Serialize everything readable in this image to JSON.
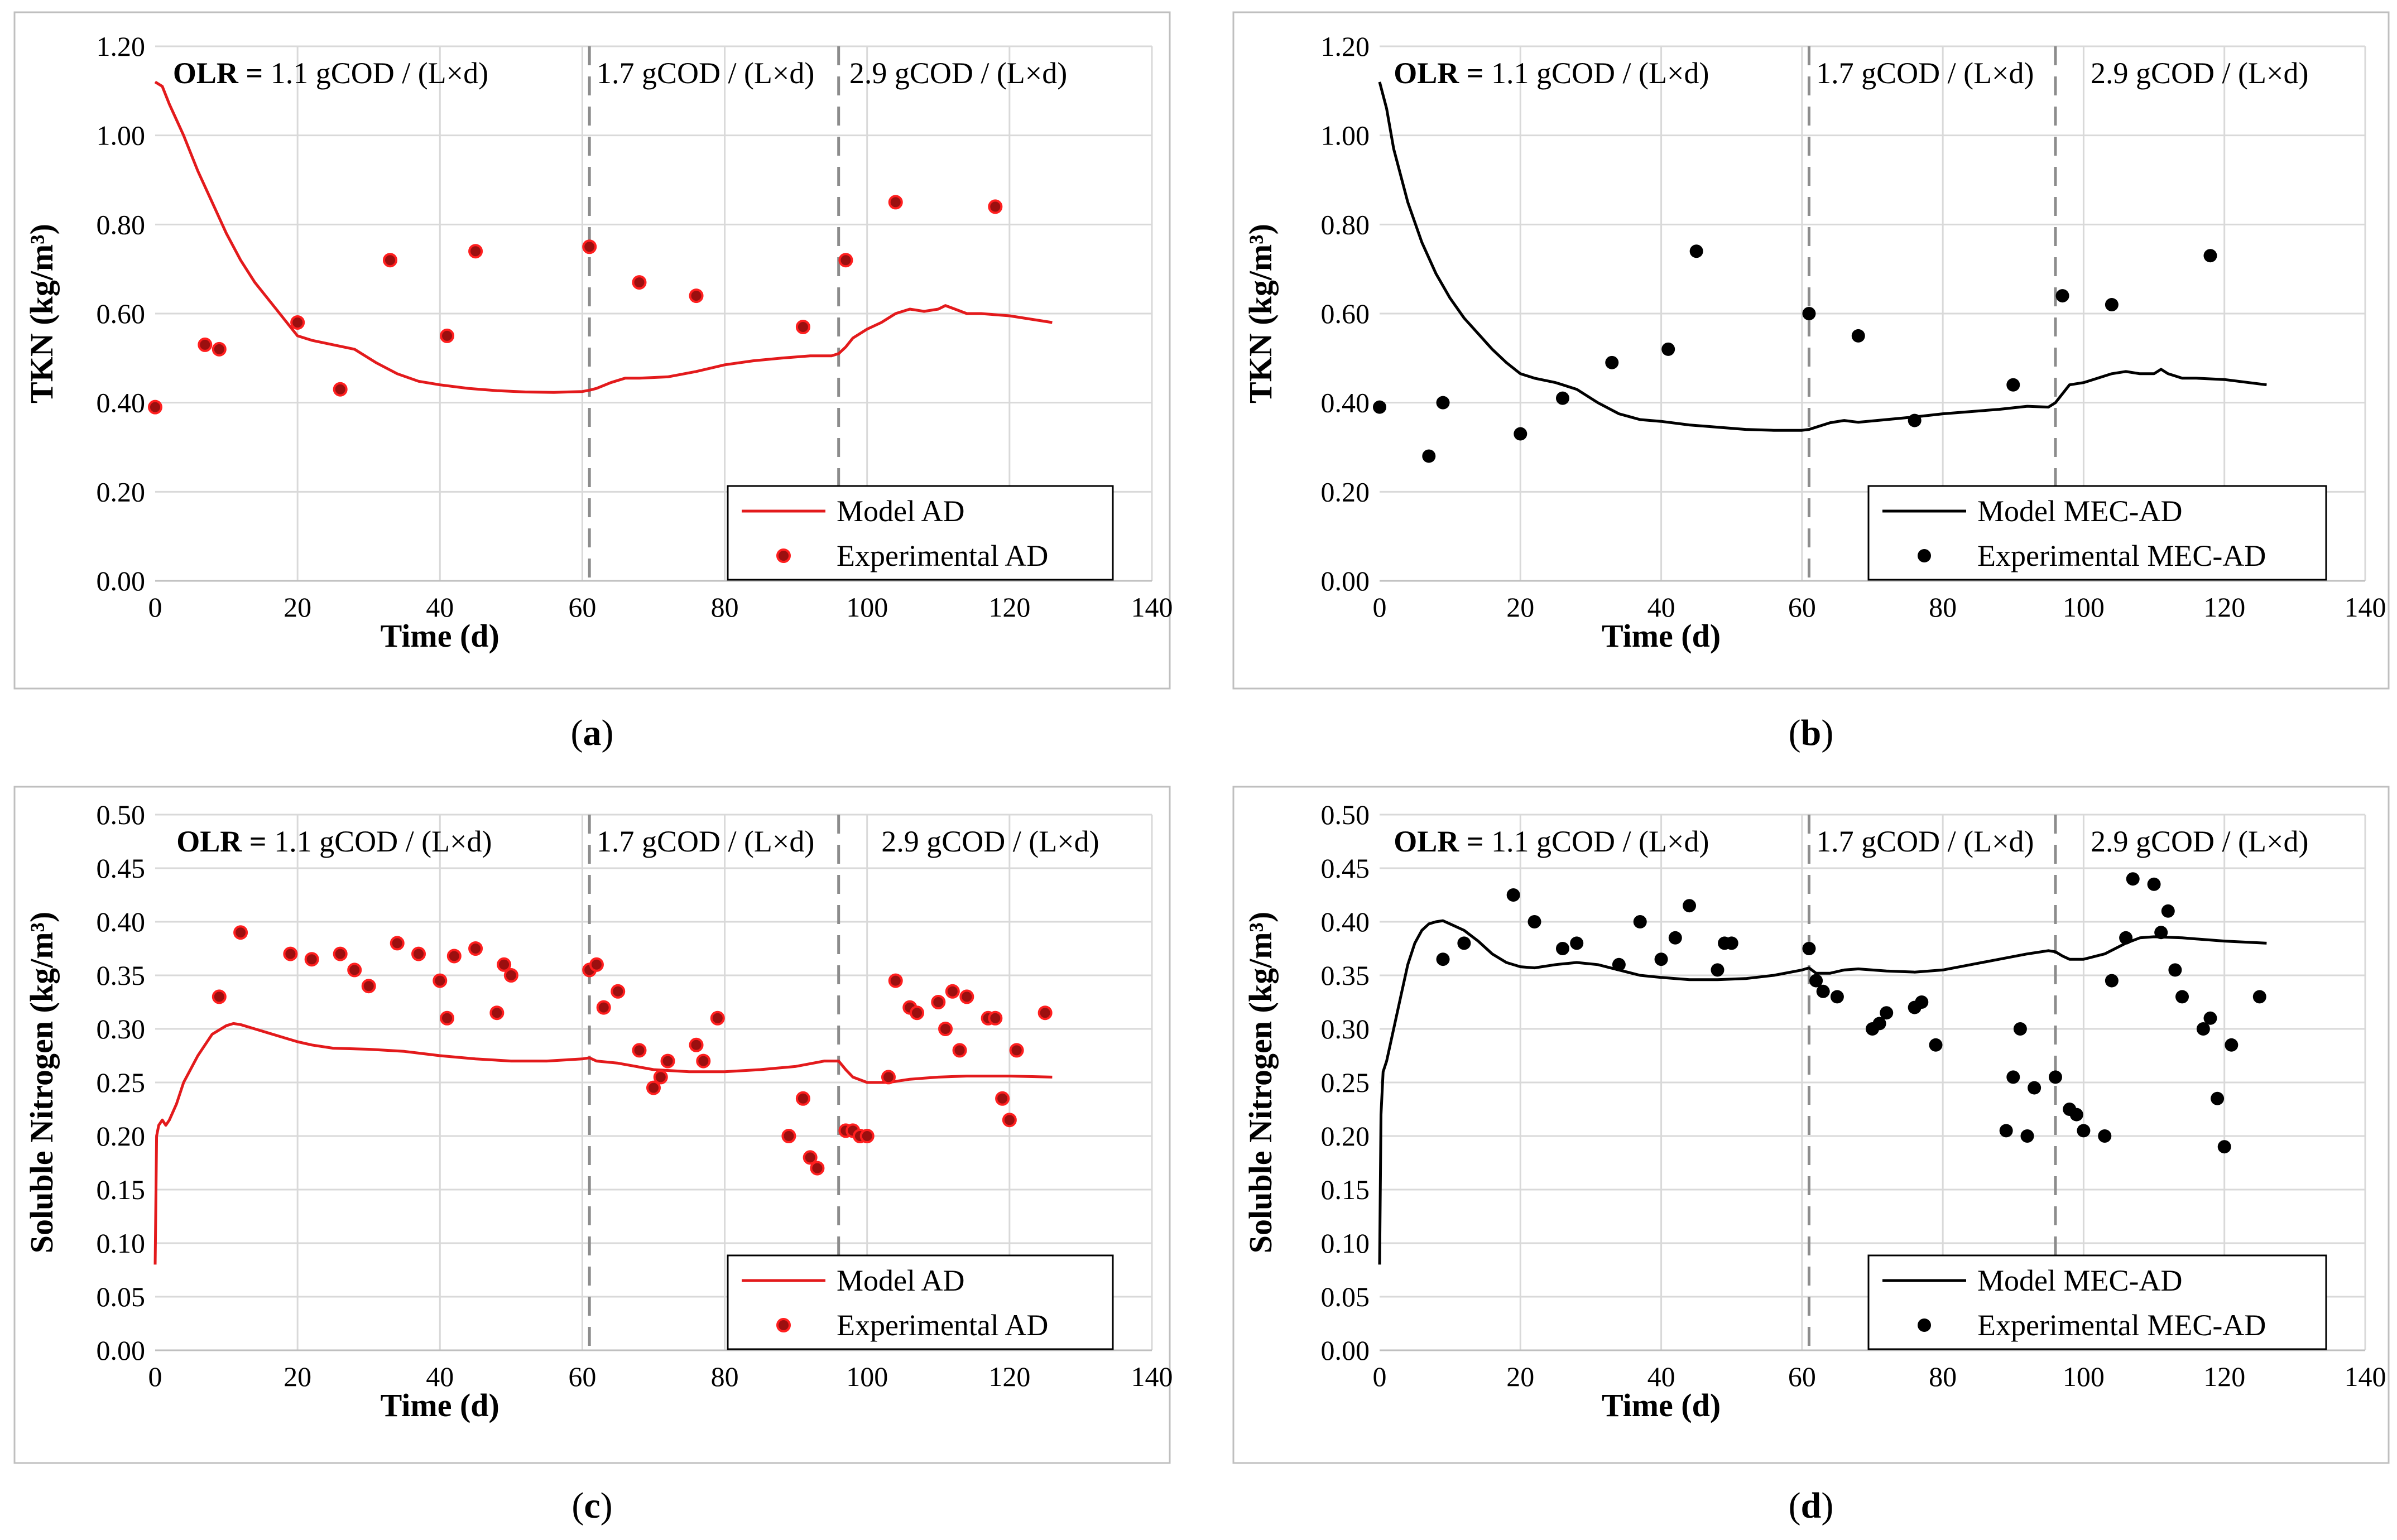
{
  "colors": {
    "red": "#e31a1c",
    "dot_red": "#9b0f0f",
    "black": "#000000",
    "grid": "#d9d9d9",
    "frame": "#bfbfbf",
    "divider": "#8c8c8c"
  },
  "chart_data": [
    {
      "id": "a",
      "type": "line+scatter",
      "caption": {
        "open": "(",
        "letter": "a",
        "close": ")"
      },
      "xlabel": "Time (d)",
      "ylabel": "TKN (kg/m³)",
      "xlim": [
        0,
        140
      ],
      "ylim": [
        0,
        1.2
      ],
      "x_ticks": [
        0,
        20,
        40,
        60,
        80,
        100,
        120,
        140
      ],
      "y_ticks": [
        0,
        0.2,
        0.4,
        0.6,
        0.8,
        1.0,
        1.2
      ],
      "y_decimals": 2,
      "color": "red",
      "dividers": [
        61,
        96
      ],
      "olr": [
        {
          "x": 2.5,
          "prefix": "OLR = ",
          "text": "1.1 gCOD / (L×d)"
        },
        {
          "x": 62,
          "prefix": "",
          "text": "1.7 gCOD / (L×d)"
        },
        {
          "x": 97.5,
          "prefix": "",
          "text": "2.9 gCOD / (L×d)"
        }
      ],
      "legend": {
        "line": "Model AD",
        "points": "Experimental AD"
      },
      "model": {
        "x": [
          0,
          1,
          2,
          4,
          6,
          8,
          10,
          12,
          14,
          16,
          18,
          20,
          22,
          25,
          28,
          31,
          34,
          37,
          40,
          44,
          48,
          52,
          56,
          60,
          61,
          62,
          64,
          66,
          68,
          72,
          76,
          80,
          84,
          88,
          92,
          95,
          96,
          97,
          98,
          100,
          102,
          104,
          106,
          108,
          110,
          111,
          112,
          114,
          116,
          120,
          126
        ],
        "y": [
          1.12,
          1.11,
          1.07,
          1.0,
          0.92,
          0.85,
          0.78,
          0.72,
          0.67,
          0.63,
          0.59,
          0.55,
          0.54,
          0.53,
          0.52,
          0.49,
          0.465,
          0.448,
          0.44,
          0.432,
          0.427,
          0.424,
          0.423,
          0.425,
          0.428,
          0.432,
          0.445,
          0.455,
          0.455,
          0.458,
          0.47,
          0.485,
          0.494,
          0.5,
          0.505,
          0.505,
          0.51,
          0.525,
          0.545,
          0.565,
          0.58,
          0.6,
          0.61,
          0.605,
          0.61,
          0.618,
          0.612,
          0.6,
          0.6,
          0.595,
          0.58
        ]
      },
      "points": {
        "x": [
          0,
          7,
          9,
          20,
          26,
          33,
          41,
          45,
          61,
          68,
          76,
          91,
          97,
          104,
          118
        ],
        "y": [
          0.39,
          0.53,
          0.52,
          0.58,
          0.43,
          0.72,
          0.55,
          0.74,
          0.75,
          0.67,
          0.64,
          0.57,
          0.72,
          0.85,
          0.84
        ]
      }
    },
    {
      "id": "b",
      "type": "line+scatter",
      "caption": {
        "open": "(",
        "letter": "b",
        "close": ")"
      },
      "xlabel": "Time (d)",
      "ylabel": "TKN (kg/m³)",
      "xlim": [
        0,
        140
      ],
      "ylim": [
        0,
        1.2
      ],
      "x_ticks": [
        0,
        20,
        40,
        60,
        80,
        100,
        120,
        140
      ],
      "y_ticks": [
        0,
        0.2,
        0.4,
        0.6,
        0.8,
        1.0,
        1.2
      ],
      "y_decimals": 2,
      "color": "black",
      "dividers": [
        61,
        96
      ],
      "olr": [
        {
          "x": 2,
          "prefix": "OLR = ",
          "text": "1.1 gCOD / (L×d)"
        },
        {
          "x": 62,
          "prefix": "",
          "text": "1.7 gCOD / (L×d)"
        },
        {
          "x": 101,
          "prefix": "",
          "text": "2.9 gCOD / (L×d)"
        }
      ],
      "legend": {
        "line": "Model MEC-AD",
        "points": "Experimental MEC-AD"
      },
      "model": {
        "x": [
          0,
          1,
          2,
          4,
          6,
          8,
          10,
          12,
          14,
          16,
          18,
          20,
          22,
          25,
          28,
          31,
          34,
          37,
          40,
          44,
          48,
          52,
          56,
          60,
          61,
          62,
          64,
          66,
          68,
          72,
          76,
          80,
          84,
          88,
          92,
          95,
          96,
          97,
          98,
          100,
          102,
          104,
          106,
          108,
          110,
          111,
          112,
          114,
          116,
          120,
          126
        ],
        "y": [
          1.12,
          1.06,
          0.97,
          0.85,
          0.76,
          0.69,
          0.635,
          0.59,
          0.555,
          0.52,
          0.49,
          0.465,
          0.455,
          0.445,
          0.43,
          0.4,
          0.375,
          0.362,
          0.358,
          0.35,
          0.345,
          0.34,
          0.338,
          0.338,
          0.34,
          0.345,
          0.355,
          0.36,
          0.356,
          0.362,
          0.368,
          0.375,
          0.38,
          0.385,
          0.392,
          0.39,
          0.4,
          0.42,
          0.44,
          0.445,
          0.455,
          0.465,
          0.47,
          0.465,
          0.465,
          0.475,
          0.465,
          0.455,
          0.455,
          0.452,
          0.44
        ]
      },
      "points": {
        "x": [
          0,
          7,
          9,
          20,
          26,
          33,
          41,
          45,
          61,
          68,
          76,
          90,
          97,
          104,
          118
        ],
        "y": [
          0.39,
          0.28,
          0.4,
          0.33,
          0.41,
          0.49,
          0.52,
          0.74,
          0.6,
          0.55,
          0.36,
          0.44,
          0.64,
          0.62,
          0.73
        ]
      }
    },
    {
      "id": "c",
      "type": "line+scatter",
      "caption": {
        "open": "(",
        "letter": "c",
        "close": ")"
      },
      "xlabel": "Time (d)",
      "ylabel": "Soluble Nitrogen (kg/m³)",
      "xlim": [
        0,
        140
      ],
      "ylim": [
        0,
        0.5
      ],
      "x_ticks": [
        0,
        20,
        40,
        60,
        80,
        100,
        120,
        140
      ],
      "y_ticks": [
        0,
        0.05,
        0.1,
        0.15,
        0.2,
        0.25,
        0.3,
        0.35,
        0.4,
        0.45,
        0.5
      ],
      "y_decimals": 2,
      "color": "red",
      "dividers": [
        61,
        96
      ],
      "olr": [
        {
          "x": 3,
          "prefix": "OLR = ",
          "text": "1.1 gCOD / (L×d)"
        },
        {
          "x": 62,
          "prefix": "",
          "text": "1.7 gCOD / (L×d)"
        },
        {
          "x": 102,
          "prefix": "",
          "text": "2.9 gCOD / (L×d)"
        }
      ],
      "legend": {
        "line": "Model AD",
        "points": "Experimental AD"
      },
      "model": {
        "x": [
          0,
          0.2,
          0.5,
          1,
          1.5,
          2,
          3,
          4,
          6,
          8,
          10,
          11,
          12,
          14,
          16,
          18,
          20,
          22,
          25,
          30,
          35,
          40,
          45,
          50,
          55,
          60,
          61,
          62,
          65,
          70,
          75,
          80,
          85,
          90,
          94,
          96,
          97,
          98,
          100,
          103,
          106,
          110,
          114,
          120,
          126
        ],
        "y": [
          0.08,
          0.2,
          0.21,
          0.215,
          0.21,
          0.215,
          0.23,
          0.25,
          0.275,
          0.295,
          0.303,
          0.305,
          0.304,
          0.3,
          0.296,
          0.292,
          0.288,
          0.285,
          0.282,
          0.281,
          0.279,
          0.275,
          0.272,
          0.27,
          0.27,
          0.272,
          0.273,
          0.27,
          0.268,
          0.262,
          0.26,
          0.26,
          0.262,
          0.265,
          0.27,
          0.27,
          0.262,
          0.255,
          0.25,
          0.25,
          0.253,
          0.255,
          0.256,
          0.256,
          0.255
        ]
      },
      "points": {
        "x": [
          9,
          12,
          19,
          22,
          26,
          28,
          30,
          34,
          37,
          40,
          41,
          42,
          45,
          48,
          49,
          50,
          61,
          62,
          63,
          65,
          68,
          70,
          71,
          72,
          76,
          77,
          79,
          89,
          91,
          92,
          93,
          97,
          98,
          99,
          100,
          103,
          104,
          106,
          107,
          110,
          111,
          112,
          113,
          114,
          117,
          118,
          119,
          120,
          121,
          125
        ],
        "y": [
          0.33,
          0.39,
          0.37,
          0.365,
          0.37,
          0.355,
          0.34,
          0.38,
          0.37,
          0.345,
          0.31,
          0.368,
          0.375,
          0.315,
          0.36,
          0.35,
          0.355,
          0.36,
          0.32,
          0.335,
          0.28,
          0.245,
          0.255,
          0.27,
          0.285,
          0.27,
          0.31,
          0.2,
          0.235,
          0.18,
          0.17,
          0.205,
          0.205,
          0.2,
          0.2,
          0.255,
          0.345,
          0.32,
          0.315,
          0.325,
          0.3,
          0.335,
          0.28,
          0.33,
          0.31,
          0.31,
          0.235,
          0.215,
          0.28,
          0.315
        ]
      }
    },
    {
      "id": "d",
      "type": "line+scatter",
      "caption": {
        "open": "(",
        "letter": "d",
        "close": ")"
      },
      "xlabel": "Time (d)",
      "ylabel": "Soluble Nitrogen (kg/m³)",
      "xlim": [
        0,
        140
      ],
      "ylim": [
        0,
        0.5
      ],
      "x_ticks": [
        0,
        20,
        40,
        60,
        80,
        100,
        120,
        140
      ],
      "y_ticks": [
        0,
        0.05,
        0.1,
        0.15,
        0.2,
        0.25,
        0.3,
        0.35,
        0.4,
        0.45,
        0.5
      ],
      "y_decimals": 2,
      "color": "black",
      "dividers": [
        61,
        96
      ],
      "olr": [
        {
          "x": 2,
          "prefix": "OLR = ",
          "text": "1.1 gCOD / (L×d)"
        },
        {
          "x": 62,
          "prefix": "",
          "text": "1.7 gCOD / (L×d)"
        },
        {
          "x": 101,
          "prefix": "",
          "text": "2.9 gCOD / (L×d)"
        }
      ],
      "legend": {
        "line": "Model MEC-AD",
        "points": "Experimental MEC-AD"
      },
      "model": {
        "x": [
          0,
          0.2,
          0.5,
          1,
          2,
          3,
          4,
          5,
          6,
          7,
          8,
          9,
          10,
          12,
          14,
          16,
          18,
          20,
          22,
          25,
          28,
          31,
          34,
          37,
          40,
          44,
          48,
          52,
          56,
          60,
          61,
          62,
          64,
          66,
          68,
          72,
          76,
          80,
          84,
          88,
          92,
          95,
          96,
          97,
          98,
          100,
          103,
          106,
          108,
          110,
          114,
          120,
          126
        ],
        "y": [
          0.08,
          0.22,
          0.26,
          0.27,
          0.3,
          0.33,
          0.36,
          0.38,
          0.392,
          0.398,
          0.4,
          0.401,
          0.398,
          0.392,
          0.382,
          0.37,
          0.362,
          0.358,
          0.357,
          0.36,
          0.362,
          0.36,
          0.355,
          0.35,
          0.348,
          0.346,
          0.346,
          0.347,
          0.35,
          0.355,
          0.357,
          0.352,
          0.352,
          0.355,
          0.356,
          0.354,
          0.353,
          0.355,
          0.36,
          0.365,
          0.37,
          0.373,
          0.372,
          0.368,
          0.365,
          0.365,
          0.37,
          0.38,
          0.385,
          0.386,
          0.385,
          0.382,
          0.38
        ]
      },
      "points": {
        "x": [
          9,
          12,
          19,
          22,
          26,
          28,
          34,
          37,
          40,
          42,
          44,
          48,
          49,
          50,
          61,
          62,
          63,
          65,
          70,
          71,
          72,
          76,
          77,
          79,
          89,
          90,
          91,
          92,
          93,
          96,
          98,
          99,
          100,
          103,
          104,
          106,
          107,
          110,
          111,
          112,
          113,
          114,
          117,
          118,
          119,
          120,
          121,
          125
        ],
        "y": [
          0.365,
          0.38,
          0.425,
          0.4,
          0.375,
          0.38,
          0.36,
          0.4,
          0.365,
          0.385,
          0.415,
          0.355,
          0.38,
          0.38,
          0.375,
          0.345,
          0.335,
          0.33,
          0.3,
          0.305,
          0.315,
          0.32,
          0.325,
          0.285,
          0.205,
          0.255,
          0.3,
          0.2,
          0.245,
          0.255,
          0.225,
          0.22,
          0.205,
          0.2,
          0.345,
          0.385,
          0.44,
          0.435,
          0.39,
          0.41,
          0.355,
          0.33,
          0.3,
          0.31,
          0.235,
          0.19,
          0.285,
          0.33
        ]
      }
    }
  ]
}
